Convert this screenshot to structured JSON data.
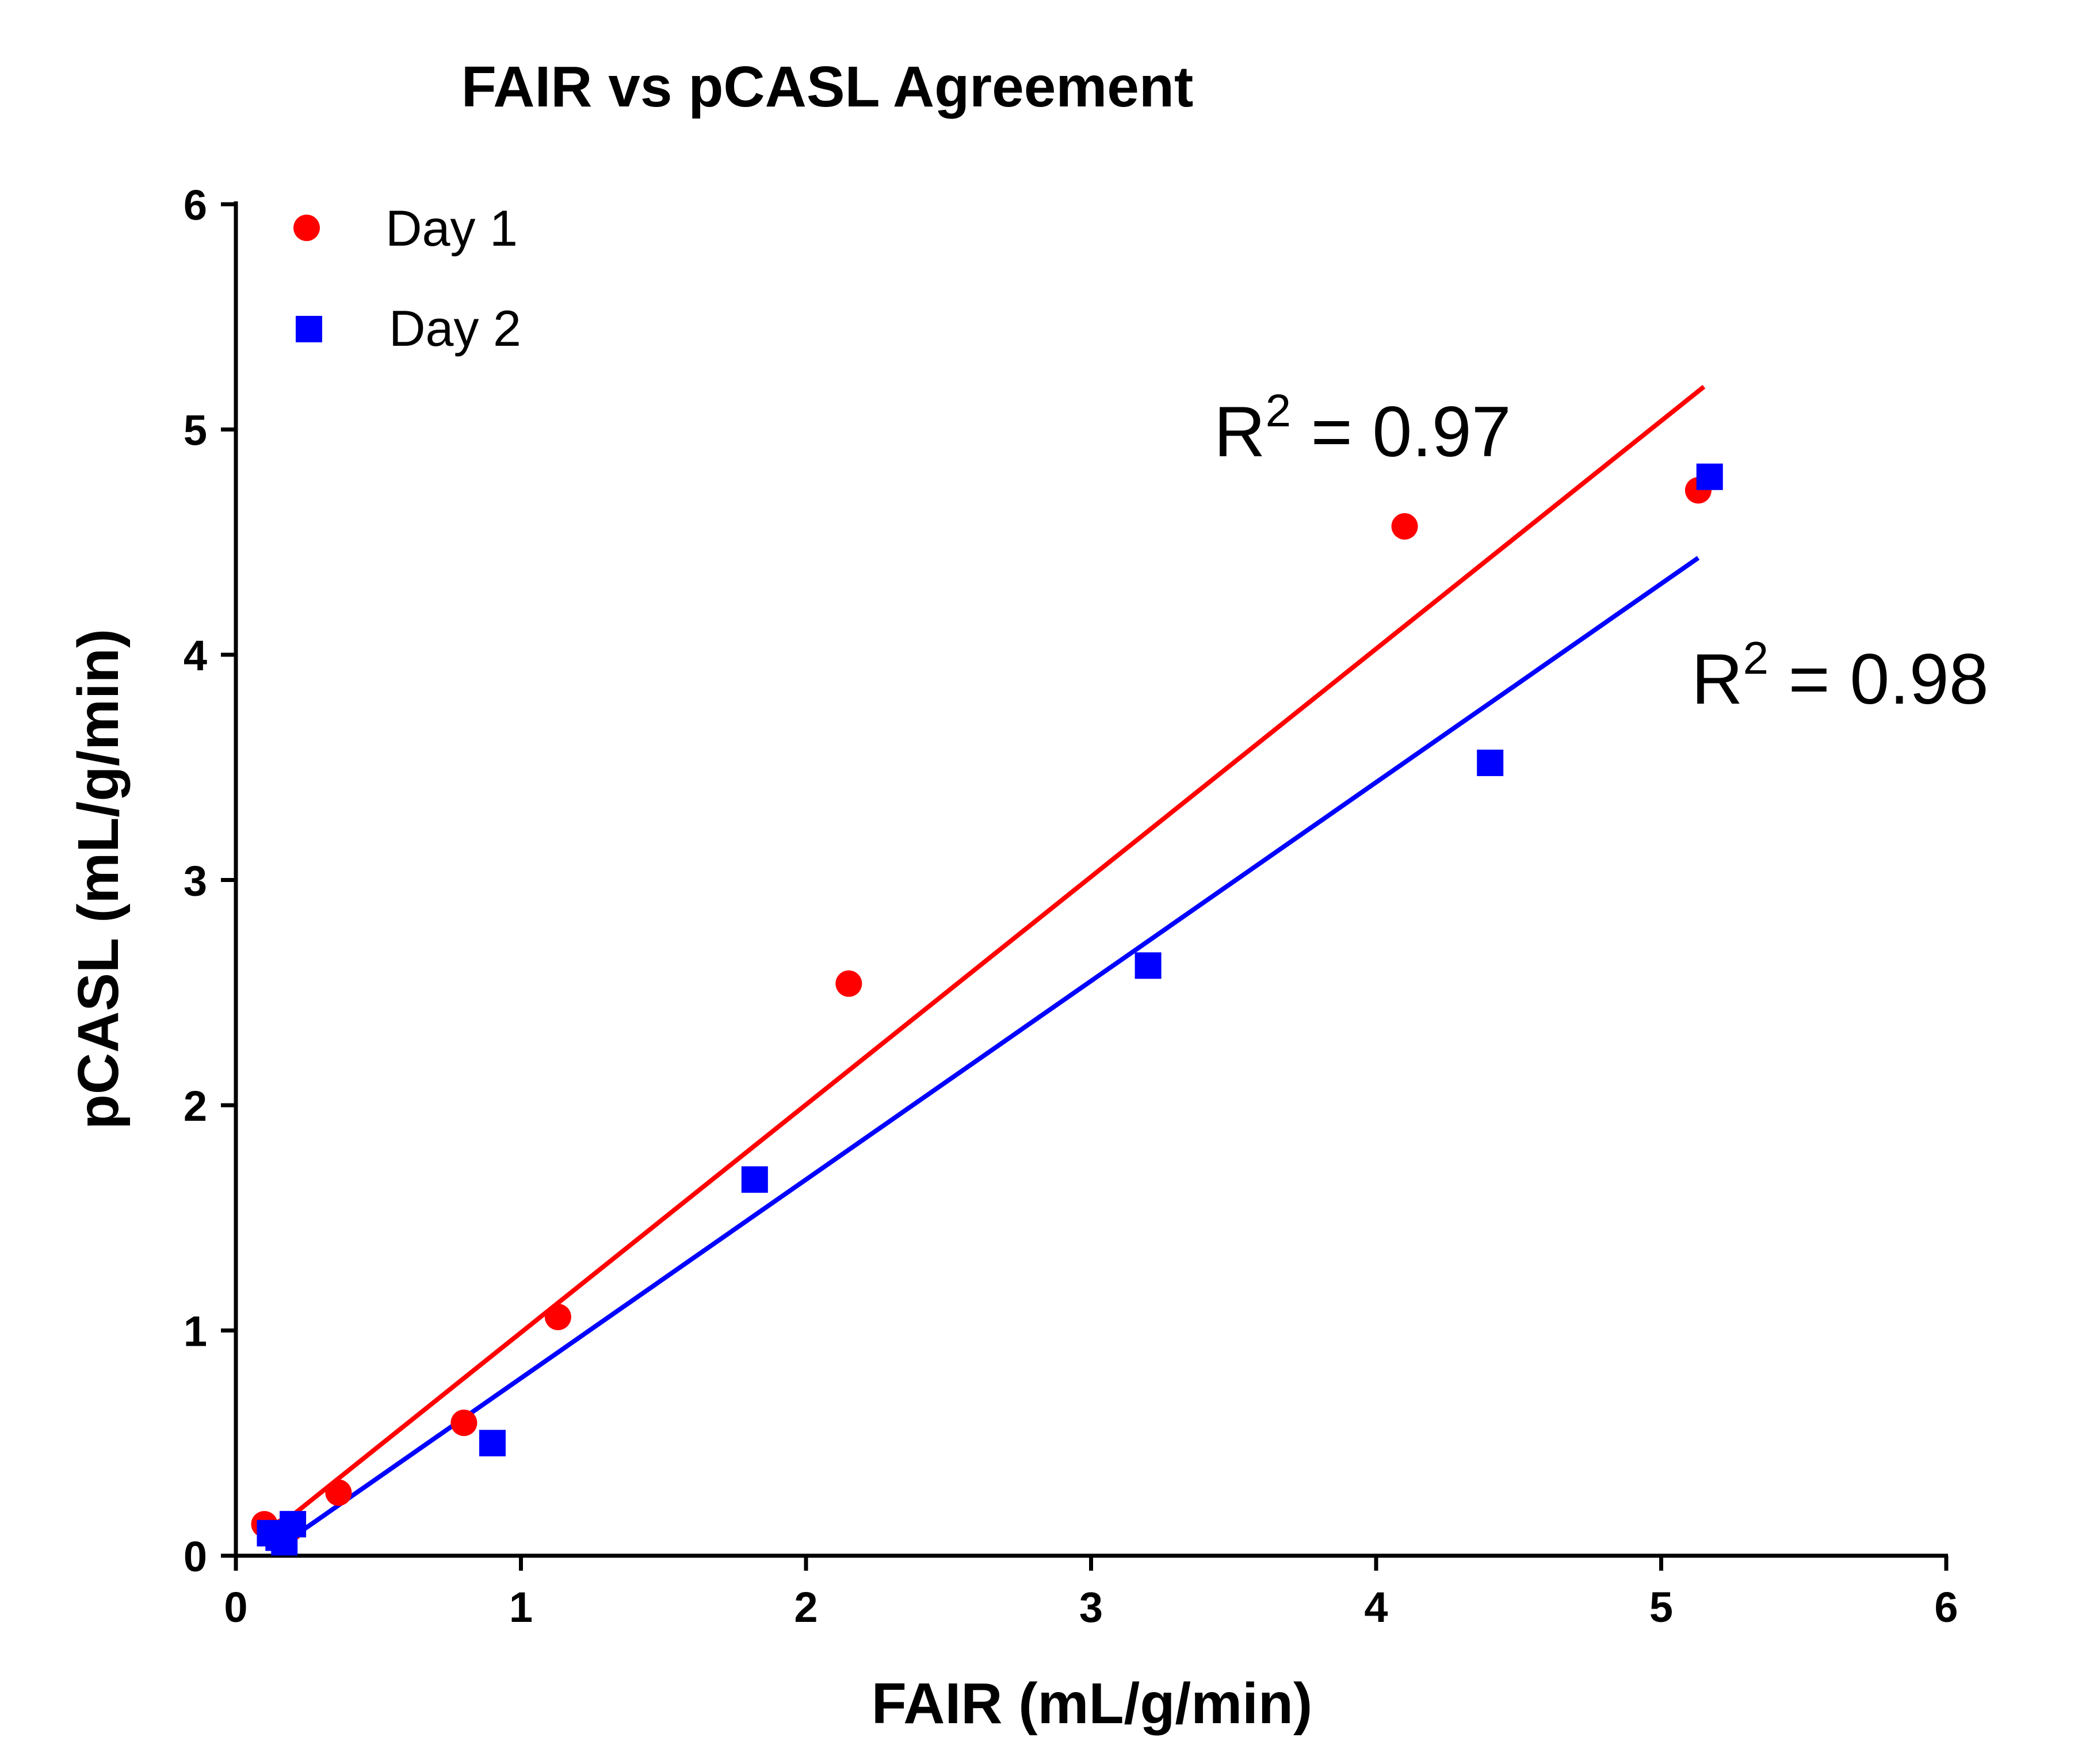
{
  "chart_data": {
    "type": "scatter",
    "title": "FAIR vs  pCASL Agreement",
    "xlabel": "FAIR (mL/g/min)",
    "ylabel": "pCASL (mL/g/min)",
    "xlim": [
      0,
      6
    ],
    "ylim": [
      0,
      6
    ],
    "xticks": [
      "0",
      "1",
      "2",
      "3",
      "4",
      "5",
      "6"
    ],
    "yticks": [
      "0",
      "1",
      "2",
      "3",
      "4",
      "5",
      "6"
    ],
    "grid": false,
    "legend_position": "top-left",
    "series": [
      {
        "name": "Day 1",
        "marker": "circle",
        "color": "#ff0000",
        "points": [
          [
            0.1,
            0.14
          ],
          [
            0.13,
            0.1
          ],
          [
            0.17,
            0.11
          ],
          [
            0.19,
            0.12
          ],
          [
            0.36,
            0.28
          ],
          [
            0.8,
            0.59
          ],
          [
            1.13,
            1.06
          ],
          [
            2.15,
            2.54
          ],
          [
            4.1,
            4.57
          ],
          [
            5.13,
            4.73
          ]
        ],
        "fit": {
          "x": [
            0.1,
            5.15
          ],
          "y": [
            0.08,
            5.19
          ]
        },
        "r2_label": "R",
        "r2_sup": "2",
        "r2_value": " = 0.97"
      },
      {
        "name": "Day 2",
        "marker": "square",
        "color": "#0000ff",
        "points": [
          [
            0.12,
            0.1
          ],
          [
            0.15,
            0.08
          ],
          [
            0.17,
            0.06
          ],
          [
            0.2,
            0.14
          ],
          [
            0.9,
            0.5
          ],
          [
            1.82,
            1.67
          ],
          [
            3.2,
            2.62
          ],
          [
            4.4,
            3.52
          ],
          [
            5.17,
            4.79
          ]
        ],
        "fit": {
          "x": [
            0.14,
            5.13
          ],
          "y": [
            0.03,
            4.43
          ]
        },
        "r2_label": "R",
        "r2_sup": "2",
        "r2_value": " = 0.98"
      }
    ]
  }
}
